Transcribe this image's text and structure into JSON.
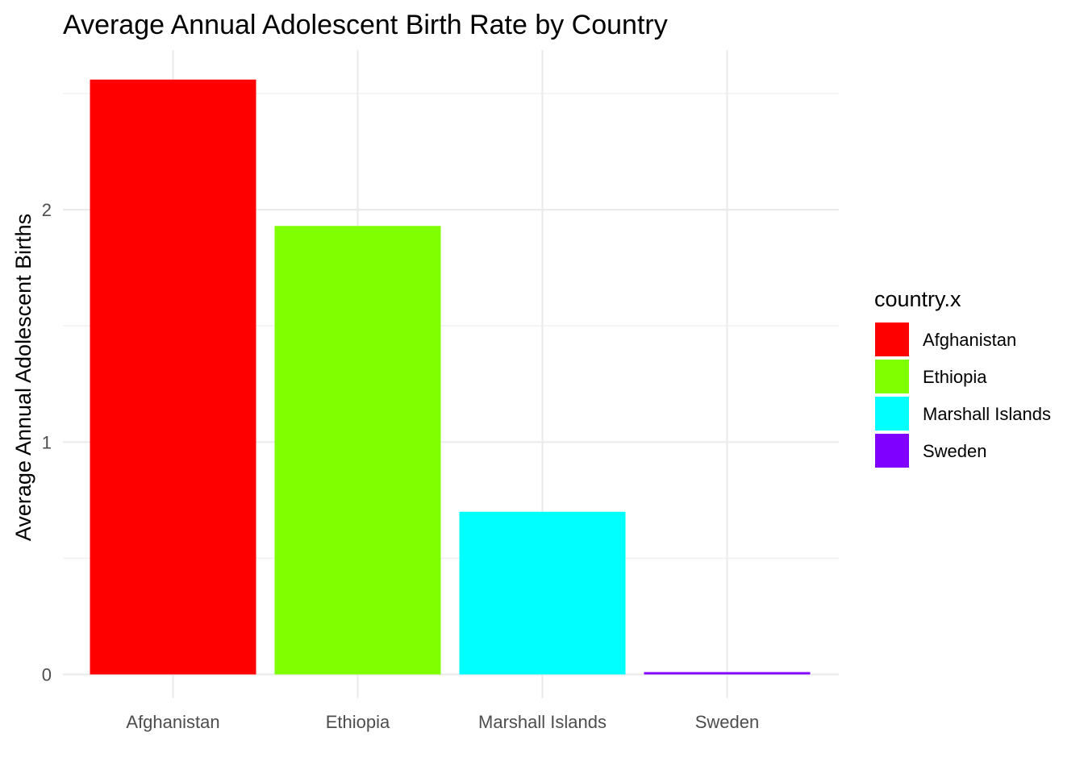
{
  "chart_data": {
    "type": "bar",
    "title": "Average Annual Adolescent Birth Rate by Country",
    "xlabel": "",
    "ylabel": "Average Annual Adolescent Births",
    "categories": [
      "Afghanistan",
      "Ethiopia",
      "Marshall Islands",
      "Sweden"
    ],
    "values": [
      2.56,
      1.93,
      0.7,
      0.01
    ],
    "colors": [
      "#FF0000",
      "#80FF00",
      "#00FFFF",
      "#8000FF"
    ],
    "ylim": [
      0,
      2.56
    ],
    "yticks": [
      0,
      1,
      2
    ],
    "ytick_labels": [
      "0",
      "1",
      "2"
    ],
    "grid": true,
    "legend": {
      "title": "country.x",
      "position": "right",
      "entries": [
        "Afghanistan",
        "Ethiopia",
        "Marshall Islands",
        "Sweden"
      ]
    }
  }
}
